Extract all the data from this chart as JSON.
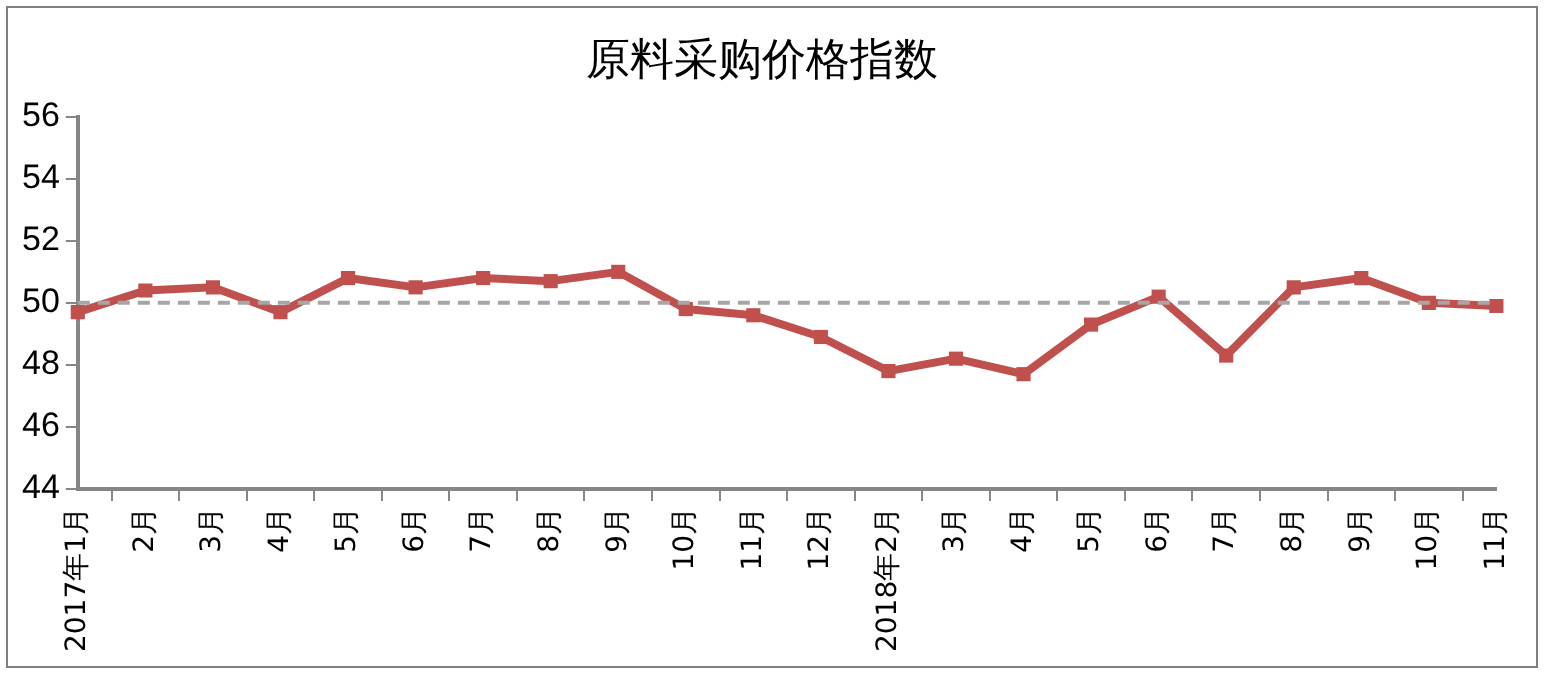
{
  "chart_data": {
    "type": "line",
    "title": "原料采购价格指数",
    "categories": [
      "2017年1月",
      "2月",
      "3月",
      "4月",
      "5月",
      "6月",
      "7月",
      "8月",
      "9月",
      "10月",
      "11月",
      "12月",
      "2018年2月",
      "3月",
      "4月",
      "5月",
      "6月",
      "7月",
      "8月",
      "9月",
      "10月",
      "11月"
    ],
    "series": [
      {
        "color": "#c0504d",
        "values": [
          49.7,
          50.4,
          50.5,
          49.7,
          50.8,
          50.5,
          50.8,
          50.7,
          51.0,
          49.8,
          49.6,
          48.9,
          47.8,
          48.2,
          47.7,
          49.3,
          50.2,
          48.3,
          50.5,
          50.8,
          50.0,
          49.9
        ]
      }
    ],
    "ylim": [
      44,
      56
    ],
    "yticks": [
      44,
      46,
      48,
      50,
      52,
      54,
      56
    ],
    "ref_lines": [
      {
        "axis": "y",
        "value": 50,
        "color": "#a6a6a6",
        "line_style": "dashed"
      }
    ],
    "grid": false,
    "legend": false,
    "marker": "square",
    "line_style": "solid"
  }
}
